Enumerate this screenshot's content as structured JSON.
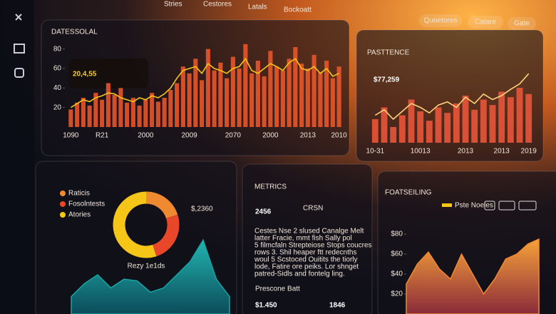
{
  "nav": [
    "Stries",
    "Cestores",
    "Latals",
    "Bockoatt"
  ],
  "header_buttons": [
    "Quoetores",
    "Catare",
    "Gate"
  ],
  "metrics": {
    "title": "METRICS",
    "big_value": "2456",
    "big_value_note": "CRSN",
    "paragraph": [
      "Cestes Nse 2 slused Canalge Melt",
      "latter Fracie, mmt fish Sally pol",
      "5 filmcfaln Strepteiose Stops coucres",
      "rows 3. Shil heaper ftt redecnths",
      "woul 5 Scstoced Ouitits the tiorly",
      "lode, Fatire ore peiks. Lor shnget",
      "patred-Sidls and fontelg ling."
    ],
    "footer_label": "Prescone Batt",
    "footer_values": [
      "$1.450",
      "1846"
    ]
  },
  "chart_data": [
    {
      "type": "bar",
      "title": "DATESSOLAL",
      "big_value": "20,4,55",
      "categories": [
        "1090",
        null,
        null,
        null,
        null,
        "R21",
        null,
        null,
        null,
        null,
        null,
        null,
        "2000",
        null,
        null,
        null,
        null,
        null,
        null,
        "2009",
        null,
        null,
        null,
        null,
        null,
        null,
        "2070",
        null,
        null,
        null,
        null,
        null,
        "2000",
        null,
        null,
        null,
        null,
        null,
        "2013",
        null,
        null,
        null,
        null,
        "2010"
      ],
      "series": [
        {
          "type": "bar",
          "color": "#e8552a",
          "values": [
            18,
            25,
            30,
            22,
            35,
            28,
            45,
            33,
            40,
            25,
            30,
            22,
            28,
            35,
            26,
            30,
            38,
            45,
            62,
            55,
            70,
            48,
            80,
            58,
            66,
            50,
            72,
            60,
            85,
            55,
            68,
            52,
            78,
            62,
            58,
            70,
            82,
            65,
            60,
            74,
            56,
            68,
            50,
            62
          ]
        },
        {
          "type": "line",
          "color": "#f5c518",
          "values": [
            20,
            24,
            28,
            26,
            30,
            32,
            35,
            34,
            30,
            28,
            26,
            30,
            28,
            32,
            30,
            34,
            40,
            50,
            58,
            60,
            62,
            55,
            65,
            60,
            58,
            55,
            60,
            62,
            70,
            58,
            55,
            60,
            65,
            62,
            58,
            66,
            70,
            60,
            58,
            62,
            55,
            60,
            52,
            55
          ]
        }
      ],
      "ylim": [
        0,
        90
      ],
      "yticks": [
        20,
        40,
        60,
        80
      ]
    },
    {
      "type": "bar",
      "title": "PASTTENCE",
      "big_value": "$77,259",
      "categories": [
        "10-31",
        null,
        null,
        null,
        null,
        "10013",
        null,
        null,
        null,
        null,
        "2013",
        null,
        null,
        null,
        "2013",
        null,
        null,
        "2019"
      ],
      "series": [
        {
          "type": "bar",
          "color": "#e8553a",
          "values": [
            30,
            45,
            20,
            35,
            55,
            40,
            28,
            45,
            38,
            50,
            60,
            42,
            55,
            48,
            65,
            58,
            70,
            62
          ]
        },
        {
          "type": "line",
          "color": "#ffd37a",
          "values": [
            35,
            42,
            30,
            40,
            50,
            45,
            38,
            48,
            52,
            45,
            58,
            50,
            62,
            55,
            60,
            68,
            75,
            88
          ]
        }
      ],
      "ylim": [
        0,
        100
      ]
    },
    {
      "type": "pie",
      "categories": [
        "Raticis",
        "Fosolntests",
        "Atories"
      ],
      "colors": [
        "#f08a30",
        "#e8472a",
        "#f5c518"
      ],
      "values": [
        20,
        25,
        55
      ],
      "annotations": [
        "$,2360",
        "Rezy 1e1ds"
      ]
    },
    {
      "type": "area",
      "color": "#1aa3a3",
      "values": [
        20,
        35,
        45,
        30,
        40,
        38,
        25,
        30,
        45,
        60,
        85,
        40,
        20
      ],
      "ylim": [
        0,
        100
      ]
    },
    {
      "type": "area",
      "title": "FOATSEILING",
      "legend": "Pste Noeles",
      "color": "#f08a30",
      "values": [
        30,
        50,
        62,
        45,
        35,
        60,
        40,
        20,
        35,
        55,
        60,
        70,
        75
      ],
      "ylim": [
        0,
        100
      ],
      "yticks": [
        {
          "value": 20,
          "label": "$20"
        },
        {
          "value": 40,
          "label": "$40"
        },
        {
          "value": 60,
          "label": "$60"
        },
        {
          "value": 80,
          "label": "$80"
        }
      ]
    }
  ]
}
